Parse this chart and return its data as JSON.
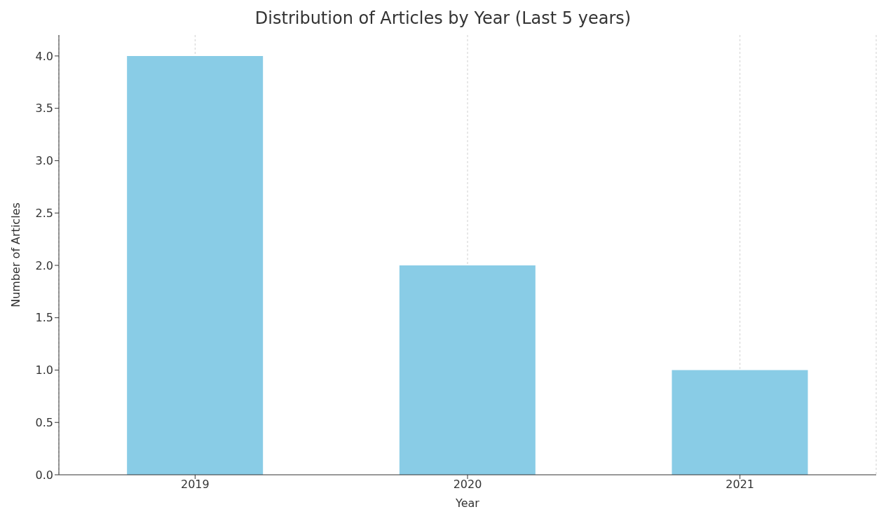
{
  "chart_data": {
    "type": "bar",
    "title": "Distribution of Articles by Year (Last 5 years)",
    "xlabel": "Year",
    "ylabel": "Number of Articles",
    "categories": [
      "2019",
      "2020",
      "2021"
    ],
    "values": [
      4,
      2,
      1
    ],
    "color": "#89cce6",
    "ylim": [
      0,
      4.2
    ],
    "yticks": [
      {
        "value": 0,
        "label": "0.0"
      },
      {
        "value": 0.5,
        "label": "0.5"
      },
      {
        "value": 1,
        "label": "1.0"
      },
      {
        "value": 1.5,
        "label": "1.5"
      },
      {
        "value": 2,
        "label": "2.0"
      },
      {
        "value": 2.5,
        "label": "2.5"
      },
      {
        "value": 3,
        "label": "3.0"
      },
      {
        "value": 3.5,
        "label": "3.5"
      },
      {
        "value": 4,
        "label": "4.0"
      }
    ],
    "grid": "x"
  }
}
